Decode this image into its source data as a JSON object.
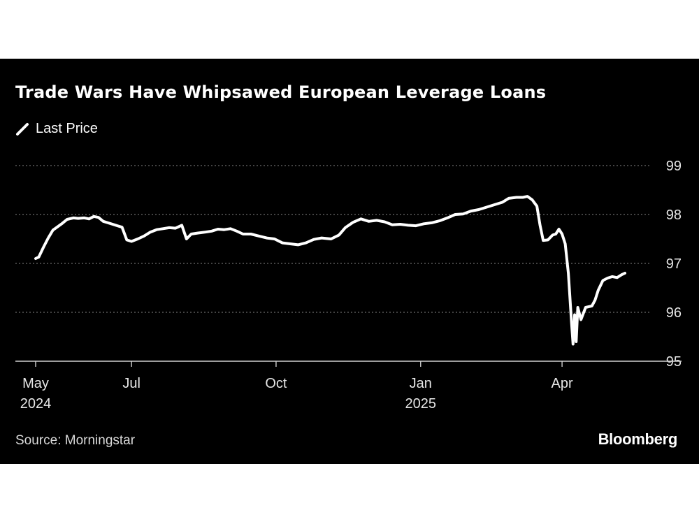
{
  "chart_data": {
    "type": "line",
    "title": "Trade Wars Have Whipsawed European Leverage Loans",
    "legend": [
      "Last Price"
    ],
    "source": "Source: Morningstar",
    "brand": "Bloomberg",
    "colors": {
      "background": "#000000",
      "line": "#ffffff",
      "grid": "#6b6b6b"
    },
    "grid": true,
    "grid_style": "dotted",
    "y_axis_side": "right",
    "ylim": [
      95,
      99
    ],
    "yticks": [
      95,
      96,
      97,
      98,
      99
    ],
    "xlim": [
      "2024-05-01",
      "2025-05-15"
    ],
    "xticks": [
      {
        "date": "2024-05-01",
        "label": "May",
        "sublabel": "2024"
      },
      {
        "date": "2024-07-01",
        "label": "Jul",
        "sublabel": ""
      },
      {
        "date": "2024-10-01",
        "label": "Oct",
        "sublabel": ""
      },
      {
        "date": "2025-01-01",
        "label": "Jan",
        "sublabel": "2025"
      },
      {
        "date": "2025-04-01",
        "label": "Apr",
        "sublabel": ""
      }
    ],
    "series": [
      {
        "name": "Last Price",
        "points": [
          [
            "2024-05-01",
            97.1
          ],
          [
            "2024-05-03",
            97.13
          ],
          [
            "2024-05-06",
            97.33
          ],
          [
            "2024-05-09",
            97.52
          ],
          [
            "2024-05-12",
            97.68
          ],
          [
            "2024-05-15",
            97.75
          ],
          [
            "2024-05-18",
            97.82
          ],
          [
            "2024-05-21",
            97.9
          ],
          [
            "2024-05-25",
            97.93
          ],
          [
            "2024-05-28",
            97.92
          ],
          [
            "2024-06-01",
            97.93
          ],
          [
            "2024-06-04",
            97.91
          ],
          [
            "2024-06-07",
            97.96
          ],
          [
            "2024-06-10",
            97.94
          ],
          [
            "2024-06-13",
            97.86
          ],
          [
            "2024-06-16",
            97.83
          ],
          [
            "2024-06-19",
            97.8
          ],
          [
            "2024-06-22",
            97.77
          ],
          [
            "2024-06-25",
            97.74
          ],
          [
            "2024-06-28",
            97.48
          ],
          [
            "2024-07-01",
            97.45
          ],
          [
            "2024-07-05",
            97.5
          ],
          [
            "2024-07-09",
            97.56
          ],
          [
            "2024-07-13",
            97.64
          ],
          [
            "2024-07-17",
            97.69
          ],
          [
            "2024-07-21",
            97.71
          ],
          [
            "2024-07-25",
            97.73
          ],
          [
            "2024-07-29",
            97.72
          ],
          [
            "2024-08-02",
            97.78
          ],
          [
            "2024-08-05",
            97.5
          ],
          [
            "2024-08-08",
            97.6
          ],
          [
            "2024-08-12",
            97.62
          ],
          [
            "2024-08-17",
            97.64
          ],
          [
            "2024-08-21",
            97.66
          ],
          [
            "2024-08-25",
            97.7
          ],
          [
            "2024-08-29",
            97.69
          ],
          [
            "2024-09-02",
            97.71
          ],
          [
            "2024-09-06",
            97.66
          ],
          [
            "2024-09-10",
            97.6
          ],
          [
            "2024-09-15",
            97.6
          ],
          [
            "2024-09-20",
            97.56
          ],
          [
            "2024-09-25",
            97.52
          ],
          [
            "2024-09-30",
            97.5
          ],
          [
            "2024-10-05",
            97.42
          ],
          [
            "2024-10-10",
            97.4
          ],
          [
            "2024-10-15",
            97.38
          ],
          [
            "2024-10-20",
            97.42
          ],
          [
            "2024-10-25",
            97.49
          ],
          [
            "2024-10-30",
            97.52
          ],
          [
            "2024-11-05",
            97.5
          ],
          [
            "2024-11-10",
            97.58
          ],
          [
            "2024-11-14",
            97.73
          ],
          [
            "2024-11-19",
            97.84
          ],
          [
            "2024-11-24",
            97.91
          ],
          [
            "2024-11-29",
            97.86
          ],
          [
            "2024-12-04",
            97.88
          ],
          [
            "2024-12-09",
            97.85
          ],
          [
            "2024-12-14",
            97.79
          ],
          [
            "2024-12-19",
            97.8
          ],
          [
            "2024-12-24",
            97.78
          ],
          [
            "2024-12-29",
            97.77
          ],
          [
            "2025-01-03",
            97.81
          ],
          [
            "2025-01-08",
            97.83
          ],
          [
            "2025-01-13",
            97.87
          ],
          [
            "2025-01-18",
            97.93
          ],
          [
            "2025-01-23",
            98.0
          ],
          [
            "2025-01-28",
            98.01
          ],
          [
            "2025-02-02",
            98.07
          ],
          [
            "2025-02-07",
            98.1
          ],
          [
            "2025-02-12",
            98.15
          ],
          [
            "2025-02-17",
            98.2
          ],
          [
            "2025-02-22",
            98.25
          ],
          [
            "2025-02-26",
            98.33
          ],
          [
            "2025-03-03",
            98.35
          ],
          [
            "2025-03-07",
            98.35
          ],
          [
            "2025-03-10",
            98.37
          ],
          [
            "2025-03-13",
            98.3
          ],
          [
            "2025-03-16",
            98.17
          ],
          [
            "2025-03-18",
            97.78
          ],
          [
            "2025-03-20",
            97.47
          ],
          [
            "2025-03-23",
            97.48
          ],
          [
            "2025-03-26",
            97.58
          ],
          [
            "2025-03-28",
            97.6
          ],
          [
            "2025-03-30",
            97.7
          ],
          [
            "2025-04-01",
            97.6
          ],
          [
            "2025-04-03",
            97.4
          ],
          [
            "2025-04-05",
            96.8
          ],
          [
            "2025-04-07",
            95.8
          ],
          [
            "2025-04-08",
            95.35
          ],
          [
            "2025-04-09",
            95.95
          ],
          [
            "2025-04-10",
            95.4
          ],
          [
            "2025-04-11",
            96.1
          ],
          [
            "2025-04-13",
            95.85
          ],
          [
            "2025-04-16",
            96.1
          ],
          [
            "2025-04-20",
            96.13
          ],
          [
            "2025-04-22",
            96.25
          ],
          [
            "2025-04-24",
            96.45
          ],
          [
            "2025-04-27",
            96.65
          ],
          [
            "2025-04-30",
            96.7
          ],
          [
            "2025-05-03",
            96.73
          ],
          [
            "2025-05-06",
            96.71
          ],
          [
            "2025-05-09",
            96.77
          ],
          [
            "2025-05-11",
            96.8
          ]
        ]
      }
    ]
  }
}
